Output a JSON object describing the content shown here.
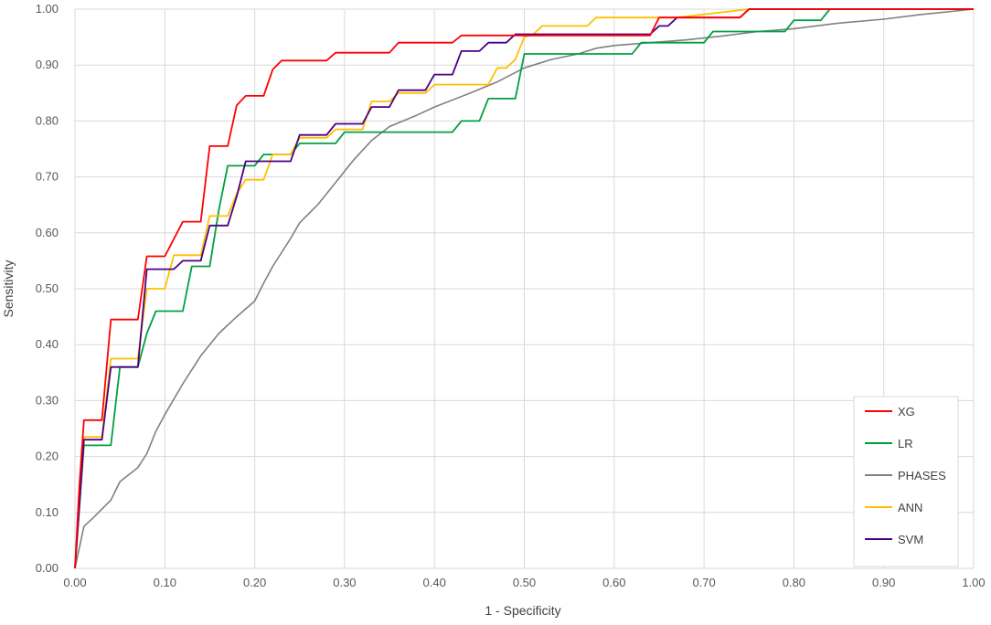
{
  "chart_data": {
    "type": "line",
    "title": "",
    "xlabel": "1 - Specificity",
    "ylabel": "Sensitivity",
    "xlim": [
      0,
      1
    ],
    "ylim": [
      0,
      1
    ],
    "x_ticks": [
      "0.00",
      "0.10",
      "0.20",
      "0.30",
      "0.40",
      "0.50",
      "0.60",
      "0.70",
      "0.80",
      "0.90",
      "1.00"
    ],
    "y_ticks": [
      "0.00",
      "0.10",
      "0.20",
      "0.30",
      "0.40",
      "0.50",
      "0.60",
      "0.70",
      "0.80",
      "0.90",
      "1.00"
    ],
    "grid": "horizontal and vertical",
    "legend_position": "bottom-right",
    "series": [
      {
        "name": "XG",
        "color": "#ff0000",
        "points": [
          [
            0,
            0
          ],
          [
            0.005,
            0.15
          ],
          [
            0.01,
            0.265
          ],
          [
            0.03,
            0.265
          ],
          [
            0.04,
            0.445
          ],
          [
            0.07,
            0.445
          ],
          [
            0.08,
            0.558
          ],
          [
            0.1,
            0.558
          ],
          [
            0.12,
            0.62
          ],
          [
            0.14,
            0.62
          ],
          [
            0.15,
            0.755
          ],
          [
            0.17,
            0.755
          ],
          [
            0.18,
            0.828
          ],
          [
            0.19,
            0.845
          ],
          [
            0.21,
            0.845
          ],
          [
            0.22,
            0.892
          ],
          [
            0.23,
            0.908
          ],
          [
            0.28,
            0.908
          ],
          [
            0.29,
            0.922
          ],
          [
            0.35,
            0.922
          ],
          [
            0.36,
            0.94
          ],
          [
            0.42,
            0.94
          ],
          [
            0.43,
            0.953
          ],
          [
            0.49,
            0.953
          ],
          [
            0.5,
            0.953
          ],
          [
            0.64,
            0.953
          ],
          [
            0.65,
            0.985
          ],
          [
            0.74,
            0.985
          ],
          [
            0.75,
            1.0
          ],
          [
            1.0,
            1.0
          ]
        ]
      },
      {
        "name": "LR",
        "color": "#00a040",
        "points": [
          [
            0,
            0
          ],
          [
            0.01,
            0.22
          ],
          [
            0.04,
            0.22
          ],
          [
            0.05,
            0.36
          ],
          [
            0.07,
            0.36
          ],
          [
            0.08,
            0.42
          ],
          [
            0.09,
            0.46
          ],
          [
            0.12,
            0.46
          ],
          [
            0.13,
            0.54
          ],
          [
            0.15,
            0.54
          ],
          [
            0.16,
            0.64
          ],
          [
            0.17,
            0.72
          ],
          [
            0.2,
            0.72
          ],
          [
            0.21,
            0.74
          ],
          [
            0.24,
            0.74
          ],
          [
            0.25,
            0.76
          ],
          [
            0.29,
            0.76
          ],
          [
            0.3,
            0.78
          ],
          [
            0.42,
            0.78
          ],
          [
            0.43,
            0.8
          ],
          [
            0.45,
            0.8
          ],
          [
            0.46,
            0.84
          ],
          [
            0.49,
            0.84
          ],
          [
            0.5,
            0.92
          ],
          [
            0.62,
            0.92
          ],
          [
            0.63,
            0.94
          ],
          [
            0.7,
            0.94
          ],
          [
            0.71,
            0.96
          ],
          [
            0.79,
            0.96
          ],
          [
            0.8,
            0.98
          ],
          [
            0.83,
            0.98
          ],
          [
            0.84,
            1.0
          ],
          [
            1.0,
            1.0
          ]
        ]
      },
      {
        "name": "PHASES",
        "color": "#808080",
        "points": [
          [
            0,
            0
          ],
          [
            0.01,
            0.075
          ],
          [
            0.02,
            0.09
          ],
          [
            0.04,
            0.122
          ],
          [
            0.05,
            0.155
          ],
          [
            0.07,
            0.18
          ],
          [
            0.08,
            0.205
          ],
          [
            0.09,
            0.245
          ],
          [
            0.1,
            0.275
          ],
          [
            0.12,
            0.33
          ],
          [
            0.14,
            0.38
          ],
          [
            0.16,
            0.42
          ],
          [
            0.18,
            0.45
          ],
          [
            0.2,
            0.478
          ],
          [
            0.21,
            0.51
          ],
          [
            0.22,
            0.54
          ],
          [
            0.24,
            0.59
          ],
          [
            0.25,
            0.618
          ],
          [
            0.27,
            0.65
          ],
          [
            0.29,
            0.69
          ],
          [
            0.31,
            0.73
          ],
          [
            0.33,
            0.765
          ],
          [
            0.35,
            0.79
          ],
          [
            0.38,
            0.81
          ],
          [
            0.4,
            0.825
          ],
          [
            0.44,
            0.85
          ],
          [
            0.47,
            0.87
          ],
          [
            0.5,
            0.895
          ],
          [
            0.53,
            0.91
          ],
          [
            0.56,
            0.92
          ],
          [
            0.58,
            0.93
          ],
          [
            0.6,
            0.935
          ],
          [
            0.64,
            0.94
          ],
          [
            0.68,
            0.945
          ],
          [
            0.72,
            0.952
          ],
          [
            0.76,
            0.96
          ],
          [
            0.8,
            0.965
          ],
          [
            0.85,
            0.975
          ],
          [
            0.9,
            0.982
          ],
          [
            0.94,
            0.99
          ],
          [
            1.0,
            1.0
          ]
        ]
      },
      {
        "name": "ANN",
        "color": "#ffc000",
        "points": [
          [
            0,
            0
          ],
          [
            0.01,
            0.235
          ],
          [
            0.03,
            0.235
          ],
          [
            0.04,
            0.375
          ],
          [
            0.07,
            0.375
          ],
          [
            0.08,
            0.5
          ],
          [
            0.1,
            0.5
          ],
          [
            0.11,
            0.56
          ],
          [
            0.14,
            0.56
          ],
          [
            0.15,
            0.63
          ],
          [
            0.17,
            0.63
          ],
          [
            0.18,
            0.67
          ],
          [
            0.19,
            0.695
          ],
          [
            0.21,
            0.695
          ],
          [
            0.22,
            0.74
          ],
          [
            0.24,
            0.74
          ],
          [
            0.25,
            0.77
          ],
          [
            0.28,
            0.77
          ],
          [
            0.29,
            0.785
          ],
          [
            0.32,
            0.785
          ],
          [
            0.33,
            0.835
          ],
          [
            0.35,
            0.835
          ],
          [
            0.36,
            0.85
          ],
          [
            0.39,
            0.85
          ],
          [
            0.4,
            0.865
          ],
          [
            0.46,
            0.865
          ],
          [
            0.47,
            0.895
          ],
          [
            0.48,
            0.895
          ],
          [
            0.49,
            0.91
          ],
          [
            0.5,
            0.95
          ],
          [
            0.51,
            0.955
          ],
          [
            0.52,
            0.97
          ],
          [
            0.57,
            0.97
          ],
          [
            0.58,
            0.985
          ],
          [
            0.66,
            0.985
          ],
          [
            0.67,
            0.985
          ],
          [
            0.75,
            1.0
          ],
          [
            1.0,
            1.0
          ]
        ]
      },
      {
        "name": "SVM",
        "color": "#4b0082",
        "points": [
          [
            0,
            0
          ],
          [
            0.01,
            0.23
          ],
          [
            0.03,
            0.23
          ],
          [
            0.04,
            0.36
          ],
          [
            0.07,
            0.36
          ],
          [
            0.08,
            0.535
          ],
          [
            0.11,
            0.535
          ],
          [
            0.12,
            0.55
          ],
          [
            0.14,
            0.55
          ],
          [
            0.15,
            0.613
          ],
          [
            0.17,
            0.613
          ],
          [
            0.18,
            0.665
          ],
          [
            0.19,
            0.728
          ],
          [
            0.21,
            0.728
          ],
          [
            0.22,
            0.728
          ],
          [
            0.24,
            0.728
          ],
          [
            0.25,
            0.775
          ],
          [
            0.28,
            0.775
          ],
          [
            0.29,
            0.795
          ],
          [
            0.32,
            0.795
          ],
          [
            0.33,
            0.825
          ],
          [
            0.35,
            0.825
          ],
          [
            0.36,
            0.855
          ],
          [
            0.39,
            0.855
          ],
          [
            0.4,
            0.883
          ],
          [
            0.42,
            0.883
          ],
          [
            0.43,
            0.925
          ],
          [
            0.45,
            0.925
          ],
          [
            0.46,
            0.94
          ],
          [
            0.48,
            0.94
          ],
          [
            0.49,
            0.955
          ],
          [
            0.64,
            0.955
          ],
          [
            0.65,
            0.97
          ],
          [
            0.66,
            0.97
          ],
          [
            0.67,
            0.985
          ],
          [
            0.74,
            0.985
          ],
          [
            0.75,
            1.0
          ],
          [
            1.0,
            1.0
          ]
        ]
      }
    ]
  }
}
